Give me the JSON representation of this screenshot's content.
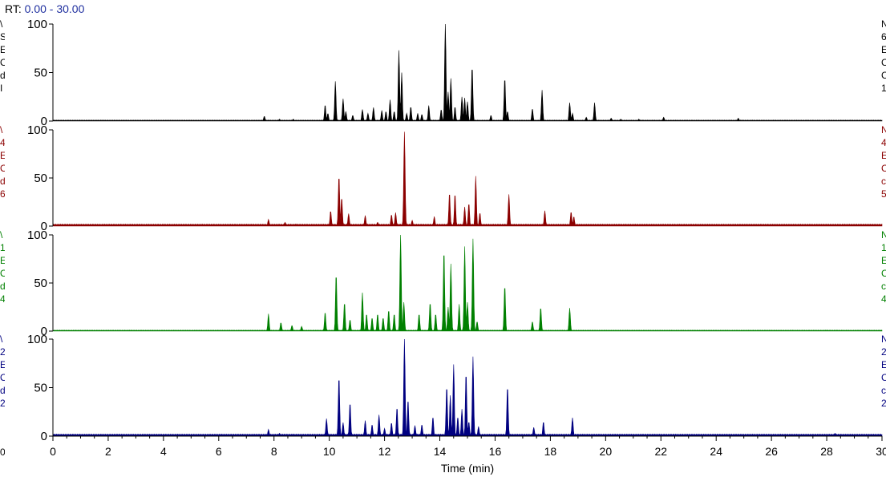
{
  "header": {
    "rt_prefix": "RT:",
    "rt_range": "0.00 - 30.00"
  },
  "colors": {
    "trace1": "#000000",
    "trace2": "#8b0000",
    "trace3": "#008000",
    "trace4": "#000080",
    "range": "#1f2f9f"
  },
  "edge_text": {
    "left": [
      [
        "\\",
        "S",
        "E",
        "O",
        "d",
        "I"
      ],
      [
        "\\",
        "4",
        "E",
        "O",
        "d",
        "6"
      ],
      [
        "\\",
        "1",
        "E",
        "O",
        "d",
        "4"
      ],
      [
        "\\",
        "2",
        "E",
        "O",
        "d",
        "2"
      ]
    ],
    "right": [
      [
        "N",
        "6",
        "E",
        "C",
        "C",
        "1"
      ],
      [
        "N",
        "4",
        "E",
        "C",
        "c",
        "5"
      ],
      [
        "N",
        "1",
        "E",
        "C",
        "c",
        "4"
      ],
      [
        "N",
        "2",
        "E",
        "C",
        "c",
        "2"
      ]
    ],
    "bottom_left": "0"
  },
  "chart_data": {
    "type": "line",
    "xlabel": "Time (min)",
    "xlim": [
      0,
      30
    ],
    "ylim": [
      0,
      100
    ],
    "x_ticks": [
      "0",
      "2",
      "4",
      "6",
      "8",
      "10",
      "12",
      "14",
      "16",
      "18",
      "20",
      "22",
      "24",
      "26",
      "28",
      "30"
    ],
    "y_ticks": [
      "0",
      "50",
      "100"
    ],
    "series": [
      {
        "color": "#000000",
        "baseline": 1,
        "peaks": [
          [
            7.65,
            5
          ],
          [
            8.2,
            2
          ],
          [
            8.7,
            2
          ],
          [
            9.85,
            17
          ],
          [
            9.95,
            8
          ],
          [
            10.22,
            41
          ],
          [
            10.5,
            23
          ],
          [
            10.6,
            10
          ],
          [
            10.85,
            6
          ],
          [
            11.2,
            12
          ],
          [
            11.4,
            8
          ],
          [
            11.6,
            14
          ],
          [
            11.9,
            11
          ],
          [
            12.05,
            10
          ],
          [
            12.2,
            22
          ],
          [
            12.35,
            10
          ],
          [
            12.52,
            73
          ],
          [
            12.62,
            50
          ],
          [
            12.8,
            8
          ],
          [
            12.95,
            15
          ],
          [
            13.2,
            8
          ],
          [
            13.35,
            7
          ],
          [
            13.6,
            16
          ],
          [
            14.05,
            12
          ],
          [
            14.2,
            100
          ],
          [
            14.3,
            30
          ],
          [
            14.4,
            44
          ],
          [
            14.55,
            15
          ],
          [
            14.8,
            25
          ],
          [
            14.9,
            24
          ],
          [
            15.0,
            20
          ],
          [
            15.17,
            57
          ],
          [
            15.85,
            6
          ],
          [
            16.35,
            45
          ],
          [
            16.45,
            10
          ],
          [
            17.35,
            13
          ],
          [
            17.7,
            32
          ],
          [
            18.7,
            19
          ],
          [
            18.8,
            8
          ],
          [
            19.3,
            4
          ],
          [
            19.6,
            19
          ],
          [
            20.2,
            3
          ],
          [
            20.55,
            2
          ],
          [
            21.2,
            2
          ],
          [
            22.1,
            4
          ],
          [
            24.8,
            3
          ]
        ]
      },
      {
        "color": "#8b0000",
        "baseline": 2,
        "peaks": [
          [
            7.8,
            7
          ],
          [
            8.4,
            4
          ],
          [
            8.8,
            2
          ],
          [
            10.05,
            16
          ],
          [
            10.35,
            53
          ],
          [
            10.45,
            30
          ],
          [
            10.7,
            13
          ],
          [
            11.3,
            11
          ],
          [
            11.75,
            4
          ],
          [
            12.25,
            12
          ],
          [
            12.4,
            14
          ],
          [
            12.72,
            98
          ],
          [
            13.0,
            6
          ],
          [
            13.8,
            10
          ],
          [
            14.35,
            35
          ],
          [
            14.55,
            34
          ],
          [
            14.9,
            20
          ],
          [
            15.05,
            24
          ],
          [
            15.3,
            52
          ],
          [
            15.45,
            14
          ],
          [
            16.5,
            33
          ],
          [
            17.8,
            16
          ],
          [
            18.75,
            15
          ],
          [
            18.85,
            10
          ]
        ]
      },
      {
        "color": "#008000",
        "baseline": 1,
        "peaks": [
          [
            7.8,
            18
          ],
          [
            8.25,
            9
          ],
          [
            8.65,
            6
          ],
          [
            9.0,
            5
          ],
          [
            9.85,
            20
          ],
          [
            10.25,
            60
          ],
          [
            10.55,
            30
          ],
          [
            10.75,
            12
          ],
          [
            11.2,
            40
          ],
          [
            11.35,
            18
          ],
          [
            11.55,
            14
          ],
          [
            11.75,
            18
          ],
          [
            11.95,
            14
          ],
          [
            12.15,
            22
          ],
          [
            12.35,
            18
          ],
          [
            12.58,
            100
          ],
          [
            12.7,
            30
          ],
          [
            13.25,
            18
          ],
          [
            13.65,
            30
          ],
          [
            13.85,
            18
          ],
          [
            14.15,
            85
          ],
          [
            14.3,
            25
          ],
          [
            14.4,
            70
          ],
          [
            14.7,
            28
          ],
          [
            14.9,
            88
          ],
          [
            15.0,
            30
          ],
          [
            15.2,
            96
          ],
          [
            15.35,
            10
          ],
          [
            16.35,
            48
          ],
          [
            17.35,
            10
          ],
          [
            17.65,
            25
          ],
          [
            18.7,
            24
          ],
          [
            28.0,
            1
          ]
        ]
      },
      {
        "color": "#000080",
        "baseline": 2,
        "peaks": [
          [
            7.8,
            7
          ],
          [
            8.2,
            3
          ],
          [
            8.7,
            2
          ],
          [
            9.9,
            18
          ],
          [
            10.35,
            62
          ],
          [
            10.5,
            14
          ],
          [
            10.75,
            35
          ],
          [
            11.3,
            16
          ],
          [
            11.55,
            12
          ],
          [
            11.8,
            22
          ],
          [
            12.0,
            8
          ],
          [
            12.25,
            14
          ],
          [
            12.45,
            30
          ],
          [
            12.72,
            100
          ],
          [
            12.85,
            38
          ],
          [
            13.1,
            11
          ],
          [
            13.35,
            12
          ],
          [
            13.75,
            20
          ],
          [
            14.25,
            52
          ],
          [
            14.38,
            42
          ],
          [
            14.5,
            74
          ],
          [
            14.65,
            20
          ],
          [
            14.8,
            28
          ],
          [
            14.95,
            66
          ],
          [
            15.05,
            15
          ],
          [
            15.2,
            82
          ],
          [
            15.4,
            10
          ],
          [
            16.45,
            52
          ],
          [
            17.4,
            9
          ],
          [
            17.75,
            15
          ],
          [
            18.8,
            19
          ],
          [
            28.3,
            3
          ]
        ]
      }
    ]
  }
}
